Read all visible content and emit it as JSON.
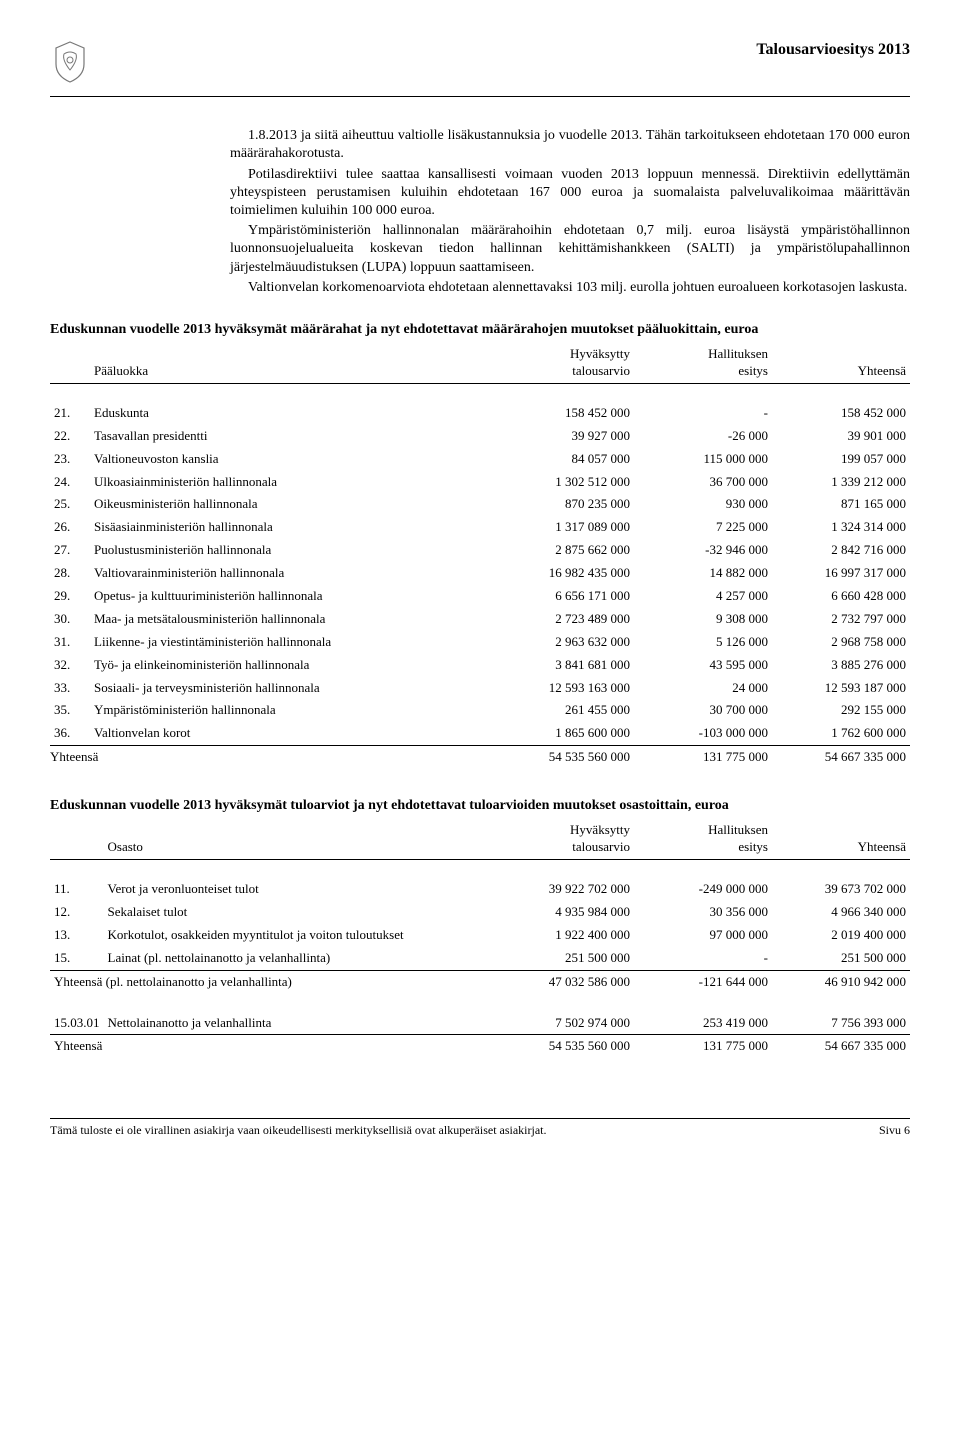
{
  "header": {
    "title": "Talousarvioesitys 2013"
  },
  "paragraphs": [
    "1.8.2013 ja siitä aiheuttuu valtiolle lisäkustannuksia jo vuodelle 2013. Tähän tarkoitukseen ehdotetaan 170 000 euron määrärahakorotusta.",
    "Potilasdirektiivi tulee saattaa kansallisesti voimaan vuoden 2013 loppuun mennessä. Direktiivin edellyttämän yhteyspisteen perustamisen kuluihin ehdotetaan 167 000 euroa ja suomalaista palveluvalikoimaa määrittävän toimielimen kuluihin 100 000 euroa.",
    "Ympäristöministeriön hallinnonalan määrärahoihin ehdotetaan 0,7 milj. euroa lisäystä ympäristöhallinnon luonnonsuojelualueita koskevan tiedon hallinnan kehittämishankkeen (SALTI) ja ympäristölupahallinnon järjestelmäuudistuksen (LUPA) loppuun saattamiseen.",
    "Valtionvelan korkomenoarviota ehdotetaan alennettavaksi 103 milj. eurolla johtuen euroalueen korkotasojen laskusta."
  ],
  "table1": {
    "title": "Eduskunnan vuodelle 2013 hyväksymät määrärahat ja nyt ehdotettavat määrärahojen muutokset pääluokittain, euroa",
    "head_col1": "Pääluokka",
    "head_col2a": "Hyväksytty",
    "head_col2b": "talousarvio",
    "head_col3a": "Hallituksen",
    "head_col3b": "esitys",
    "head_col4": "Yhteensä",
    "rows": [
      {
        "n": "21.",
        "name": "Eduskunta",
        "a": "158 452 000",
        "b": "-",
        "c": "158 452 000"
      },
      {
        "n": "22.",
        "name": "Tasavallan presidentti",
        "a": "39 927 000",
        "b": "-26 000",
        "c": "39 901 000"
      },
      {
        "n": "23.",
        "name": "Valtioneuvoston kanslia",
        "a": "84 057 000",
        "b": "115 000 000",
        "c": "199 057 000"
      },
      {
        "n": "24.",
        "name": "Ulkoasiainministeriön hallinnonala",
        "a": "1 302 512 000",
        "b": "36 700 000",
        "c": "1 339 212 000"
      },
      {
        "n": "25.",
        "name": "Oikeusministeriön hallinnonala",
        "a": "870 235 000",
        "b": "930 000",
        "c": "871 165 000"
      },
      {
        "n": "26.",
        "name": "Sisäasiainministeriön hallinnonala",
        "a": "1 317 089 000",
        "b": "7 225 000",
        "c": "1 324 314 000"
      },
      {
        "n": "27.",
        "name": "Puolustusministeriön hallinnonala",
        "a": "2 875 662 000",
        "b": "-32 946 000",
        "c": "2 842 716 000"
      },
      {
        "n": "28.",
        "name": "Valtiovarainministeriön hallinnonala",
        "a": "16 982 435 000",
        "b": "14 882 000",
        "c": "16 997 317 000"
      },
      {
        "n": "29.",
        "name": "Opetus- ja kulttuuriministeriön hallinnonala",
        "a": "6 656 171 000",
        "b": "4 257 000",
        "c": "6 660 428 000"
      },
      {
        "n": "30.",
        "name": "Maa- ja metsätalousministeriön hallinnonala",
        "a": "2 723 489 000",
        "b": "9 308 000",
        "c": "2 732 797 000"
      },
      {
        "n": "31.",
        "name": "Liikenne- ja viestintäministeriön hallinnonala",
        "a": "2 963 632 000",
        "b": "5 126 000",
        "c": "2 968 758 000"
      },
      {
        "n": "32.",
        "name": "Työ- ja elinkeinoministeriön hallinnonala",
        "a": "3 841 681 000",
        "b": "43 595 000",
        "c": "3 885 276 000"
      },
      {
        "n": "33.",
        "name": "Sosiaali- ja terveysministeriön hallinnonala",
        "a": "12 593 163 000",
        "b": "24 000",
        "c": "12 593 187 000"
      },
      {
        "n": "35.",
        "name": "Ympäristöministeriön hallinnonala",
        "a": "261 455 000",
        "b": "30 700 000",
        "c": "292 155 000"
      },
      {
        "n": "36.",
        "name": "Valtionvelan korot",
        "a": "1 865 600 000",
        "b": "-103 000 000",
        "c": "1 762 600 000"
      }
    ],
    "total_label": "Yhteensä",
    "total_a": "54 535 560 000",
    "total_b": "131 775 000",
    "total_c": "54 667 335 000"
  },
  "table2": {
    "title": "Eduskunnan vuodelle 2013 hyväksymät tuloarviot ja nyt ehdotettavat tuloarvioiden muutokset osastoittain, euroa",
    "head_col1": "Osasto",
    "head_col2a": "Hyväksytty",
    "head_col2b": "talousarvio",
    "head_col3a": "Hallituksen",
    "head_col3b": "esitys",
    "head_col4": "Yhteensä",
    "rows": [
      {
        "n": "11.",
        "name": "Verot ja veronluonteiset tulot",
        "a": "39 922 702 000",
        "b": "-249 000 000",
        "c": "39 673 702 000"
      },
      {
        "n": "12.",
        "name": "Sekalaiset tulot",
        "a": "4 935 984 000",
        "b": "30 356 000",
        "c": "4 966 340 000"
      },
      {
        "n": "13.",
        "name": "Korkotulot, osakkeiden myyntitulot ja voiton tuloutukset",
        "a": "1 922 400 000",
        "b": "97 000 000",
        "c": "2 019 400 000"
      },
      {
        "n": "15.",
        "name": "Lainat (pl. nettolainanotto ja velanhallinta)",
        "a": "251 500 000",
        "b": "-",
        "c": "251 500 000"
      }
    ],
    "subtotal_label": "Yhteensä (pl. nettolainanotto ja velanhallinta)",
    "subtotal_a": "47 032 586 000",
    "subtotal_b": "-121 644 000",
    "subtotal_c": "46 910 942 000",
    "extra_n": "15.03.01",
    "extra_name": "Nettolainanotto ja velanhallinta",
    "extra_a": "7 502 974 000",
    "extra_b": "253 419 000",
    "extra_c": "7 756 393 000",
    "total_label": "Yhteensä",
    "total_a": "54 535 560 000",
    "total_b": "131 775 000",
    "total_c": "54 667 335 000"
  },
  "footer": {
    "left": "Tämä tuloste ei ole virallinen asiakirja vaan oikeudellisesti merkityksellisiä ovat alkuperäiset asiakirjat.",
    "right": "Sivu 6"
  }
}
